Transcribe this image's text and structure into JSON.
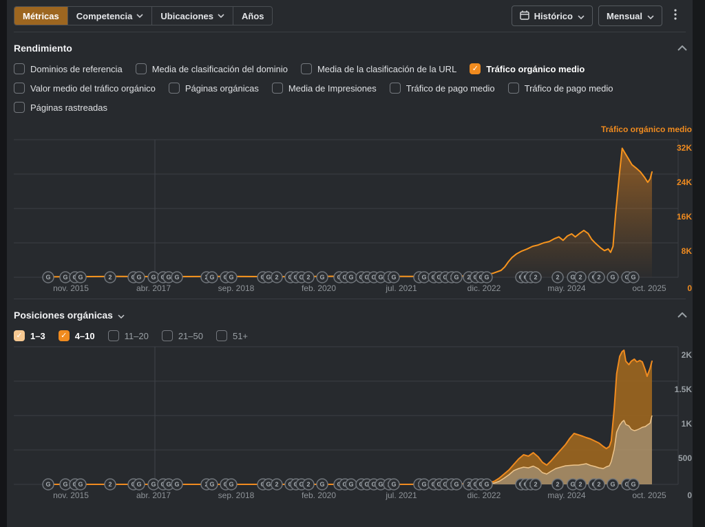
{
  "toolbar": {
    "tabs": [
      {
        "label": "Métricas",
        "active": true,
        "chevron": false
      },
      {
        "label": "Competencia",
        "active": false,
        "chevron": true
      },
      {
        "label": "Ubicaciones",
        "active": false,
        "chevron": true
      },
      {
        "label": "Años",
        "active": false,
        "chevron": false
      }
    ],
    "historico": "Histórico",
    "mensual": "Mensual"
  },
  "rendimiento": {
    "title": "Rendimiento",
    "metric_rows": [
      [
        {
          "label": "Dominios de referencia",
          "checked": false
        },
        {
          "label": "Media de clasificación del dominio",
          "checked": false
        },
        {
          "label": "Media de la clasificación de la URL",
          "checked": false
        },
        {
          "label": "Tráfico orgánico medio",
          "checked": true
        }
      ],
      [
        {
          "label": "Valor medio del tráfico orgánico",
          "checked": false
        },
        {
          "label": "Páginas orgánicas",
          "checked": false
        },
        {
          "label": "Media de Impresiones",
          "checked": false
        },
        {
          "label": "Tráfico de pago medio",
          "checked": false
        },
        {
          "label": "Tráfico de pago medio",
          "checked": false
        }
      ],
      [
        {
          "label": "Páginas rastreadas",
          "checked": false
        }
      ]
    ]
  },
  "posiciones": {
    "title": "Posiciones orgánicas",
    "filters": [
      {
        "label": "1–3",
        "checked": true,
        "color": "#f6c891"
      },
      {
        "label": "4–10",
        "checked": true,
        "color": "#f08b1f"
      },
      {
        "label": "11–20",
        "checked": false,
        "color": null
      },
      {
        "label": "21–50",
        "checked": false,
        "color": null
      },
      {
        "label": "51+",
        "checked": false,
        "color": null
      }
    ]
  },
  "google_updates_markers": [
    [
      50,
      "G"
    ],
    [
      75,
      "G"
    ],
    [
      89,
      "G"
    ],
    [
      97,
      "G"
    ],
    [
      140,
      "2"
    ],
    [
      174,
      "G"
    ],
    [
      182,
      "G"
    ],
    [
      203,
      "G"
    ],
    [
      217,
      "G"
    ],
    [
      225,
      "G"
    ],
    [
      237,
      "G"
    ],
    [
      280,
      "2"
    ],
    [
      288,
      "G"
    ],
    [
      308,
      "G"
    ],
    [
      316,
      "G"
    ],
    [
      362,
      "G"
    ],
    [
      370,
      "G"
    ],
    [
      382,
      "2"
    ],
    [
      402,
      "G"
    ],
    [
      410,
      "G"
    ],
    [
      418,
      "G"
    ],
    [
      428,
      "2"
    ],
    [
      448,
      "G"
    ],
    [
      473,
      "G"
    ],
    [
      481,
      "G"
    ],
    [
      490,
      "G"
    ],
    [
      505,
      "G"
    ],
    [
      513,
      "G"
    ],
    [
      523,
      "G"
    ],
    [
      533,
      "G"
    ],
    [
      545,
      "1"
    ],
    [
      552,
      "G"
    ],
    [
      589,
      "1"
    ],
    [
      596,
      "G"
    ],
    [
      610,
      "G"
    ],
    [
      618,
      "G"
    ],
    [
      627,
      "G"
    ],
    [
      636,
      "1"
    ],
    [
      643,
      "G"
    ],
    [
      661,
      "2"
    ],
    [
      671,
      "G"
    ],
    [
      679,
      "G"
    ],
    [
      687,
      "G"
    ],
    [
      737,
      "G"
    ],
    [
      744,
      "G"
    ],
    [
      751,
      "1"
    ],
    [
      758,
      "2"
    ],
    [
      790,
      "2"
    ],
    [
      812,
      "G"
    ],
    [
      823,
      "2"
    ],
    [
      843,
      "G"
    ],
    [
      850,
      "2"
    ],
    [
      870,
      "G"
    ],
    [
      891,
      "G"
    ],
    [
      900,
      "G"
    ]
  ],
  "chart_data": [
    {
      "type": "area",
      "title": "Tráfico orgánico medio",
      "x_ticks": [
        "nov. 2015",
        "abr. 2017",
        "sep. 2018",
        "feb. 2020",
        "jul. 2021",
        "dic. 2022",
        "may. 2024",
        "oct. 2025"
      ],
      "y_ticks": [
        "32K",
        "24K",
        "16K",
        "8K",
        "0"
      ],
      "ylim": [
        0,
        32000
      ],
      "grid": true,
      "legend_position": "top-right",
      "series": [
        {
          "name": "Tráfico orgánico medio",
          "points": [
            [
              0,
              100
            ],
            [
              0.06,
              150
            ],
            [
              0.12,
              200
            ],
            [
              0.2,
              150
            ],
            [
              0.3,
              200
            ],
            [
              0.4,
              150
            ],
            [
              0.5,
              250
            ],
            [
              0.6,
              200
            ],
            [
              0.66,
              250
            ],
            [
              0.7,
              300
            ],
            [
              0.721,
              480
            ],
            [
              0.738,
              900
            ],
            [
              0.752,
              1600
            ],
            [
              0.758,
              2400
            ],
            [
              0.764,
              3600
            ],
            [
              0.77,
              4600
            ],
            [
              0.777,
              5400
            ],
            [
              0.786,
              6100
            ],
            [
              0.795,
              6600
            ],
            [
              0.804,
              7200
            ],
            [
              0.813,
              7500
            ],
            [
              0.822,
              8000
            ],
            [
              0.831,
              8300
            ],
            [
              0.84,
              9000
            ],
            [
              0.847,
              9400
            ],
            [
              0.854,
              8600
            ],
            [
              0.861,
              9600
            ],
            [
              0.868,
              10100
            ],
            [
              0.874,
              9400
            ],
            [
              0.881,
              10200
            ],
            [
              0.888,
              10900
            ],
            [
              0.895,
              10200
            ],
            [
              0.901,
              8800
            ],
            [
              0.908,
              7800
            ],
            [
              0.915,
              6900
            ],
            [
              0.922,
              6200
            ],
            [
              0.928,
              6600
            ],
            [
              0.932,
              5800
            ],
            [
              0.936,
              7200
            ],
            [
              0.94,
              14500
            ],
            [
              0.946,
              23400
            ],
            [
              0.951,
              30000
            ],
            [
              0.956,
              28800
            ],
            [
              0.962,
              27400
            ],
            [
              0.967,
              26200
            ],
            [
              0.974,
              25400
            ],
            [
              0.981,
              24500
            ],
            [
              0.988,
              23200
            ],
            [
              0.993,
              22100
            ],
            [
              0.997,
              22900
            ],
            [
              1,
              24500
            ]
          ]
        }
      ]
    },
    {
      "type": "area-stacked",
      "title": "Posiciones orgánicas",
      "x_ticks": [
        "nov. 2015",
        "abr. 2017",
        "sep. 2018",
        "feb. 2020",
        "jul. 2021",
        "dic. 2022",
        "may. 2024",
        "oct. 2025"
      ],
      "y_ticks": [
        "2K",
        "1.5K",
        "1K",
        "500",
        "0"
      ],
      "ylim": [
        0,
        2000
      ],
      "grid": true,
      "t": [
        0,
        0.3,
        0.6,
        0.7,
        0.733,
        0.741,
        0.749,
        0.757,
        0.765,
        0.773,
        0.781,
        0.789,
        0.797,
        0.805,
        0.813,
        0.82,
        0.827,
        0.834,
        0.842,
        0.85,
        0.858,
        0.865,
        0.872,
        0.879,
        0.886,
        0.892,
        0.899,
        0.906,
        0.913,
        0.92,
        0.925,
        0.93,
        0.933,
        0.938,
        0.942,
        0.947,
        0.951,
        0.954,
        0.957,
        0.962,
        0.966,
        0.971,
        0.975,
        0.98,
        0.984,
        0.989,
        0.992,
        0.997,
        1
      ],
      "series": [
        {
          "name": "1–3",
          "values": [
            0,
            0,
            0,
            5,
            10,
            20,
            45,
            90,
            140,
            200,
            230,
            250,
            240,
            265,
            230,
            170,
            150,
            190,
            230,
            250,
            270,
            275,
            280,
            280,
            290,
            300,
            275,
            260,
            240,
            230,
            255,
            270,
            330,
            510,
            760,
            860,
            910,
            930,
            870,
            850,
            800,
            780,
            790,
            810,
            830,
            840,
            860,
            890,
            1000
          ]
        },
        {
          "name": "4–10",
          "values": [
            0,
            0,
            0,
            5,
            15,
            25,
            45,
            60,
            70,
            90,
            140,
            180,
            170,
            195,
            170,
            150,
            130,
            150,
            190,
            250,
            310,
            395,
            460,
            440,
            410,
            380,
            385,
            370,
            360,
            320,
            265,
            280,
            300,
            600,
            850,
            1000,
            1020,
            1020,
            920,
            890,
            990,
            1040,
            990,
            990,
            950,
            820,
            710,
            800,
            790
          ]
        }
      ]
    }
  ],
  "colors": {
    "accent_orange": "#f08b1f",
    "active_tab_bg": "#9d6620",
    "checkbox_peach": "#f6c891",
    "series_1_3_fill": "#b89a6d",
    "series_1_3_line": "#eec58c",
    "series_4_10_fill": "#9a6520",
    "grid": "#3b3f44",
    "muted_text": "#9aa0a5",
    "marker_ring": "#71767c",
    "marker_fill": "#2b2e32"
  }
}
